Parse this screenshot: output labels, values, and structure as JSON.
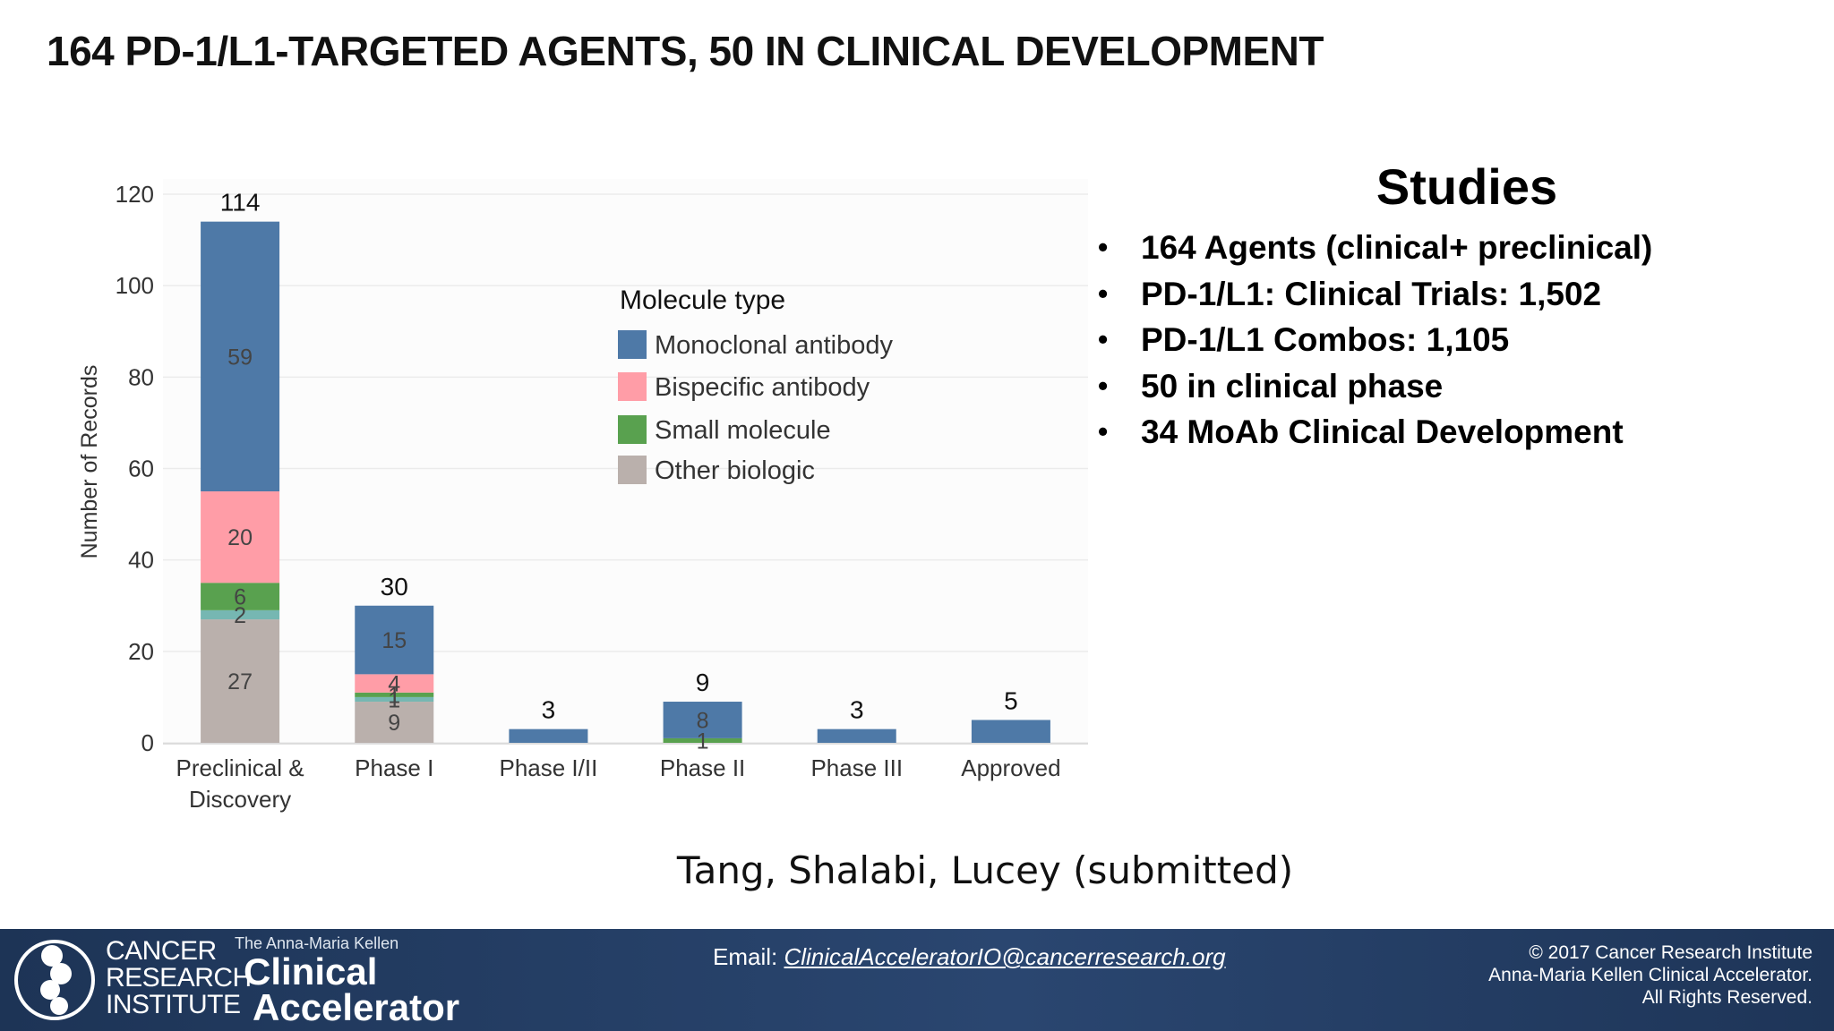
{
  "slide": {
    "title": "164 PD-1/L1-TARGETED AGENTS, 50 IN CLINICAL DEVELOPMENT"
  },
  "chart_data": {
    "type": "bar",
    "stacked": true,
    "ylabel": "Number of Records",
    "xlabel": "",
    "ylim": [
      0,
      120
    ],
    "yticks": [
      0,
      20,
      40,
      60,
      80,
      100,
      120
    ],
    "grid": true,
    "categories": [
      "Preclinical & Discovery",
      "Phase I",
      "Phase I/II",
      "Phase II",
      "Phase III",
      "Approved"
    ],
    "category_lines": [
      [
        "Preclinical &",
        "Discovery"
      ],
      [
        "Phase I"
      ],
      [
        "Phase I/II"
      ],
      [
        "Phase II"
      ],
      [
        "Phase III"
      ],
      [
        "Approved"
      ]
    ],
    "totals": [
      "114",
      "30",
      "3",
      "9",
      "3",
      "5"
    ],
    "series": [
      {
        "name": "Other biologic",
        "color": "#bab0ac",
        "values": [
          27,
          9,
          0,
          0,
          0,
          0
        ],
        "labels": [
          "27",
          "9",
          "",
          "",
          "",
          ""
        ]
      },
      {
        "name": "",
        "color": "#76b7b2",
        "values": [
          2,
          1,
          0,
          0,
          0,
          0
        ],
        "labels": [
          "2",
          "1",
          "",
          "",
          "",
          ""
        ]
      },
      {
        "name": "Small molecule",
        "color": "#59a14f",
        "values": [
          6,
          1,
          0,
          1,
          0,
          0
        ],
        "labels": [
          "6",
          "1",
          "",
          "1",
          "",
          ""
        ]
      },
      {
        "name": "Bispecific antibody",
        "color": "#ff9da7",
        "values": [
          20,
          4,
          0,
          0,
          0,
          0
        ],
        "labels": [
          "20",
          "4",
          "",
          "",
          "",
          ""
        ]
      },
      {
        "name": "Monoclonal antibody",
        "color": "#4e79a7",
        "values": [
          59,
          15,
          3,
          8,
          3,
          5
        ],
        "labels": [
          "59",
          "15",
          "",
          "8",
          "",
          ""
        ]
      }
    ],
    "legend": {
      "title": "Molecule type",
      "position": "top-right",
      "items": [
        {
          "name": "Monoclonal antibody",
          "color": "#4e79a7"
        },
        {
          "name": "Bispecific antibody",
          "color": "#ff9da7"
        },
        {
          "name": "Small molecule",
          "color": "#59a14f"
        },
        {
          "name": "Other biologic",
          "color": "#bab0ac"
        }
      ]
    }
  },
  "studies": {
    "heading": "Studies",
    "bullet": "•",
    "items": [
      "164 Agents (clinical+ preclinical)",
      "PD-1/L1: Clinical Trials: 1,502",
      "PD-1/L1 Combos:  1,105",
      "50 in clinical phase",
      "34 MoAb Clinical Development"
    ]
  },
  "citation": "Tang, Shalabi, Lucey (submitted)",
  "footer": {
    "cri_lines": [
      "CANCER",
      "RESEARCH",
      "INSTITUTE"
    ],
    "amk_small": "The Anna-Maria Kellen",
    "ca_line1": "Clinical",
    "ca_line2": "Accelerator",
    "email_label": "Email: ",
    "email": "ClinicalAcceleratorIO@cancerresearch.org",
    "copyright_lines": [
      "© 2017 Cancer Research Institute",
      "Anna-Maria Kellen Clinical Accelerator.",
      "All Rights Reserved."
    ],
    "logo_color": "#ffffff"
  }
}
